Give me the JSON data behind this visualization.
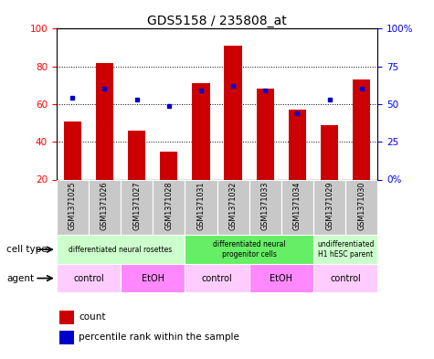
{
  "title": "GDS5158 / 235808_at",
  "samples": [
    "GSM1371025",
    "GSM1371026",
    "GSM1371027",
    "GSM1371028",
    "GSM1371031",
    "GSM1371032",
    "GSM1371033",
    "GSM1371034",
    "GSM1371029",
    "GSM1371030"
  ],
  "counts": [
    51,
    82,
    46,
    35,
    71,
    91,
    68,
    57,
    49,
    73
  ],
  "percentile_ranks": [
    54,
    60,
    53,
    49,
    59,
    62,
    59,
    44,
    53,
    60
  ],
  "ylim_left": [
    20,
    100
  ],
  "ylim_right": [
    0,
    100
  ],
  "yticks_left": [
    20,
    40,
    60,
    80,
    100
  ],
  "yticks_right": [
    0,
    25,
    50,
    75,
    100
  ],
  "ytick_labels_right": [
    "0%",
    "25",
    "50",
    "75",
    "100%"
  ],
  "bar_color": "#cc0000",
  "dot_color": "#0000cc",
  "cell_type_groups": [
    {
      "label": "differentiated neural rosettes",
      "start": 0,
      "end": 4,
      "color": "#ccffcc"
    },
    {
      "label": "differentiated neural\nprogenitor cells",
      "start": 4,
      "end": 8,
      "color": "#66ee66"
    },
    {
      "label": "undifferentiated\nH1 hESC parent",
      "start": 8,
      "end": 10,
      "color": "#ccffcc"
    }
  ],
  "agent_groups": [
    {
      "label": "control",
      "start": 0,
      "end": 2,
      "color": "#ffccff"
    },
    {
      "label": "EtOH",
      "start": 2,
      "end": 4,
      "color": "#ff88ff"
    },
    {
      "label": "control",
      "start": 4,
      "end": 6,
      "color": "#ffccff"
    },
    {
      "label": "EtOH",
      "start": 6,
      "end": 8,
      "color": "#ff88ff"
    },
    {
      "label": "control",
      "start": 8,
      "end": 10,
      "color": "#ffccff"
    }
  ],
  "legend_count_label": "count",
  "legend_pct_label": "percentile rank within the sample",
  "cell_type_row_label": "cell type",
  "agent_row_label": "agent",
  "bar_bottom": 20
}
